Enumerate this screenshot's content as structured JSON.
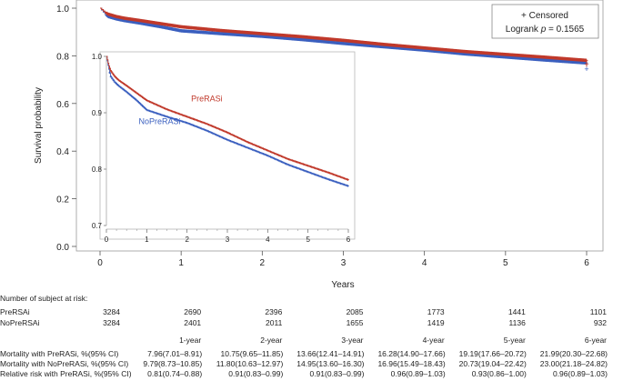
{
  "chart_data": [
    {
      "type": "line",
      "name": "main",
      "xlabel": "Years",
      "ylabel": "Survival probability",
      "xlim": [
        0,
        6
      ],
      "ylim": [
        0,
        1
      ],
      "xticks": [
        "0",
        "1",
        "2",
        "3",
        "4",
        "5",
        "6"
      ],
      "yticks": [
        "0.0",
        "0.2",
        "0.4",
        "0.6",
        "0.8",
        "1.0"
      ],
      "legend": {
        "line1": "+ Censored",
        "line2_prefix": "Logrank ",
        "line2_p": "p",
        "line2_suffix": " = 0.1565"
      },
      "series": [
        {
          "name": "PreRASi",
          "color": "#c0392b",
          "x": [
            0,
            0.05,
            0.1,
            0.2,
            0.3,
            0.5,
            0.75,
            1,
            1.5,
            2,
            2.5,
            3,
            3.5,
            4,
            4.5,
            5,
            5.5,
            6
          ],
          "y": [
            1.0,
            0.985,
            0.975,
            0.965,
            0.958,
            0.948,
            0.935,
            0.922,
            0.906,
            0.893,
            0.88,
            0.865,
            0.848,
            0.833,
            0.818,
            0.806,
            0.794,
            0.781
          ]
        },
        {
          "name": "NoPreRASi",
          "color": "#3a5fbf",
          "x": [
            0,
            0.05,
            0.1,
            0.2,
            0.3,
            0.5,
            0.75,
            1,
            1.5,
            2,
            2.5,
            3,
            3.5,
            4,
            4.5,
            5,
            5.5,
            6
          ],
          "y": [
            1.0,
            0.98,
            0.965,
            0.955,
            0.948,
            0.937,
            0.922,
            0.905,
            0.893,
            0.882,
            0.868,
            0.852,
            0.838,
            0.824,
            0.808,
            0.795,
            0.782,
            0.77
          ]
        }
      ]
    },
    {
      "type": "line",
      "name": "inset",
      "xlim": [
        0,
        6
      ],
      "ylim": [
        0.7,
        1.0
      ],
      "xticks": [
        "0",
        "1",
        "2",
        "3",
        "4",
        "5",
        "6"
      ],
      "yticks": [
        "0.7",
        "0.8",
        "0.9",
        "1.0"
      ],
      "series": [
        {
          "name": "PreRASi",
          "label": "PreRASi",
          "color": "#c0392b",
          "x": [
            0,
            0.05,
            0.1,
            0.2,
            0.3,
            0.5,
            0.75,
            1,
            1.5,
            2,
            2.5,
            3,
            3.5,
            4,
            4.5,
            5,
            5.5,
            6
          ],
          "y": [
            1.0,
            0.985,
            0.975,
            0.965,
            0.958,
            0.948,
            0.935,
            0.922,
            0.906,
            0.893,
            0.88,
            0.865,
            0.848,
            0.833,
            0.818,
            0.806,
            0.794,
            0.781
          ]
        },
        {
          "name": "NoPreRASi",
          "label": "NoPreRASi",
          "color": "#3a5fbf",
          "x": [
            0,
            0.05,
            0.1,
            0.2,
            0.3,
            0.5,
            0.75,
            1,
            1.5,
            2,
            2.5,
            3,
            3.5,
            4,
            4.5,
            5,
            5.5,
            6
          ],
          "y": [
            1.0,
            0.98,
            0.965,
            0.955,
            0.948,
            0.937,
            0.922,
            0.905,
            0.893,
            0.882,
            0.868,
            0.852,
            0.838,
            0.824,
            0.808,
            0.795,
            0.782,
            0.77
          ]
        }
      ]
    }
  ],
  "table": {
    "at_risk_title": "Number of subject at risk:",
    "at_risk_rows": [
      {
        "label": "PreRSAi",
        "values": [
          "3284",
          "2690",
          "2396",
          "2085",
          "1773",
          "1441",
          "1101"
        ]
      },
      {
        "label": "NoPreRSAi",
        "values": [
          "3284",
          "2401",
          "2011",
          "1655",
          "1419",
          "1136",
          "932"
        ]
      }
    ],
    "year_headers": [
      "1-year",
      "2-year",
      "3-year",
      "4-year",
      "5-year",
      "6-year"
    ],
    "stat_rows": [
      {
        "label": "Mortality with PreRASi, %(95% CI)",
        "values": [
          "7.96(7.01–8.91)",
          "10.75(9.65–11.85)",
          "13.66(12.41–14.91)",
          "16.28(14.90–17.66)",
          "19.19(17.66–20.72)",
          "21.99(20.30–22.68)"
        ]
      },
      {
        "label": "Mortality with NoPreRASi, %(95% CI)",
        "values": [
          "9.79(8.73–10.85)",
          "11.80(10.63–12.97)",
          "14.95(13.60–16.30)",
          "16.96(15.49–18.43)",
          "20.73(19.04–22.42)",
          "23.00(21.18–24.82)"
        ]
      },
      {
        "label": "Relative risk with PreRASi, %(95% CI)",
        "values": [
          "0.81(0.74–0.88)",
          "0.91(0.83–0.99)",
          "0.91(0.83–0.99)",
          "0.96(0.89–1.03)",
          "0.93(0.86–1.00)",
          "0.96(0.89–1.03)"
        ]
      }
    ]
  }
}
